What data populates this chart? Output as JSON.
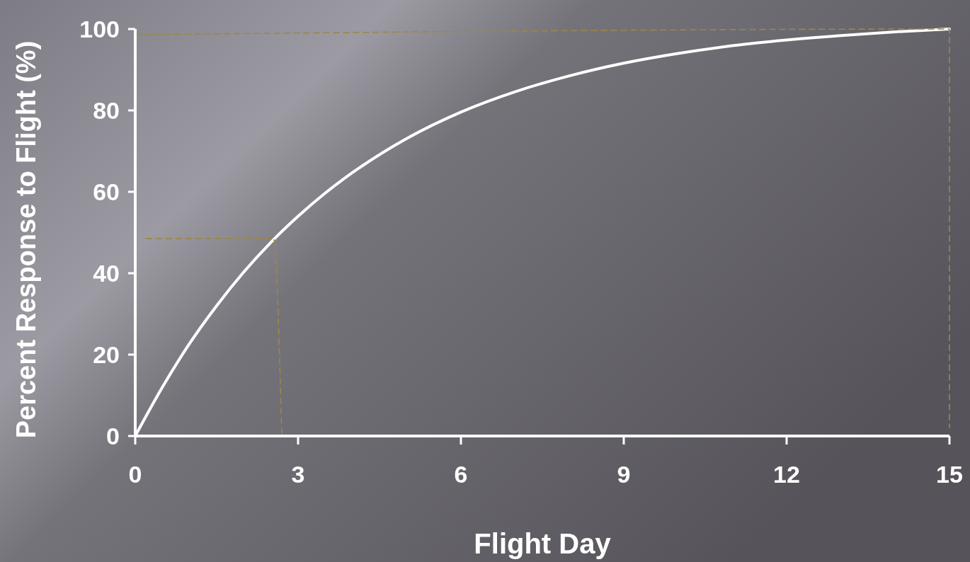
{
  "chart_data": {
    "type": "line",
    "xlabel": "Flight Day",
    "ylabel": "Percent Response to Flight (%)",
    "xlim": [
      0,
      15
    ],
    "ylim": [
      0,
      100
    ],
    "xticks": [
      0,
      3,
      6,
      9,
      12,
      15
    ],
    "yticks": [
      0,
      20,
      40,
      60,
      80,
      100
    ],
    "grid": false,
    "marker": "none",
    "series": [
      {
        "color": "#ffffff",
        "line_style": "solid",
        "x": [
          0,
          0.5,
          1,
          1.5,
          2,
          2.5,
          3,
          3.5,
          4,
          5,
          6,
          7,
          8,
          9,
          10,
          11,
          12,
          13,
          14,
          15
        ],
        "values": [
          0,
          12,
          22.7,
          32,
          40.3,
          47.6,
          54,
          59.7,
          64.7,
          73.1,
          79.6,
          84.6,
          88.5,
          91.6,
          94,
          95.9,
          97.3,
          98.4,
          99.3,
          100
        ]
      },
      {
        "color": "#9a8748",
        "line_style": "dashed",
        "x": [
          0.2,
          2.55,
          2.7
        ],
        "values": [
          48.5,
          48.5,
          0
        ]
      },
      {
        "color": "#9a8748",
        "line_style": "dashed",
        "x": [
          0,
          15,
          15
        ],
        "values": [
          98.6,
          100,
          2
        ]
      }
    ]
  }
}
